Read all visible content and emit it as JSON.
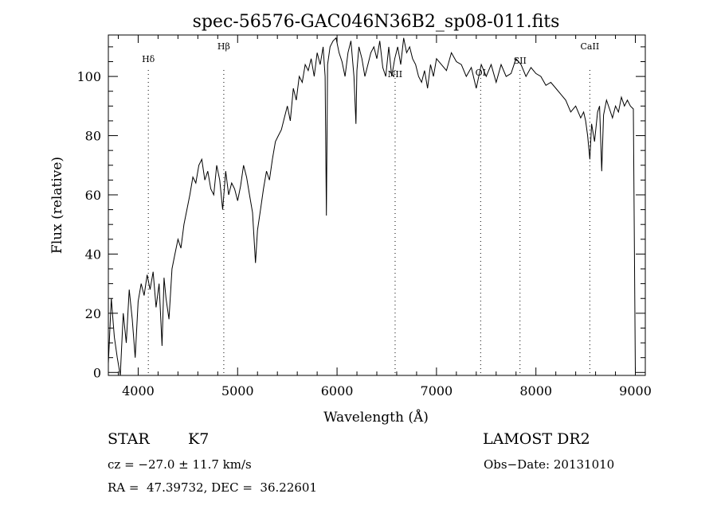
{
  "chart_data": {
    "type": "line",
    "title": "spec-56576-GAC046N36B2_sp08-011.fits",
    "xlabel": "Wavelength (Å)",
    "ylabel": "Flux (relative)",
    "xlim": [
      3700,
      9100
    ],
    "ylim": [
      -1,
      114
    ],
    "xticks": [
      4000,
      5000,
      6000,
      7000,
      8000,
      9000
    ],
    "yticks": [
      0,
      20,
      40,
      60,
      80,
      100
    ],
    "grid": false,
    "series": [
      {
        "x": [
          3700,
          3730,
          3760,
          3790,
          3820,
          3850,
          3880,
          3910,
          3940,
          3970,
          4000,
          4030,
          4060,
          4090,
          4120,
          4150,
          4180,
          4210,
          4240,
          4260,
          4280,
          4310,
          4340,
          4370,
          4400,
          4430,
          4460,
          4490,
          4520,
          4550,
          4580,
          4610,
          4640,
          4670,
          4700,
          4730,
          4760,
          4790,
          4820,
          4850,
          4880,
          4910,
          4940,
          4970,
          5000,
          5030,
          5060,
          5090,
          5120,
          5150,
          5180,
          5200,
          5230,
          5260,
          5290,
          5320,
          5350,
          5380,
          5410,
          5440,
          5470,
          5500,
          5530,
          5560,
          5590,
          5620,
          5650,
          5680,
          5710,
          5740,
          5770,
          5800,
          5830,
          5860,
          5880,
          5893,
          5905,
          5930,
          5960,
          5990,
          6020,
          6050,
          6080,
          6110,
          6140,
          6170,
          6190,
          6200,
          6220,
          6250,
          6280,
          6310,
          6340,
          6370,
          6400,
          6430,
          6460,
          6490,
          6520,
          6550,
          6580,
          6610,
          6640,
          6670,
          6700,
          6730,
          6760,
          6790,
          6820,
          6850,
          6880,
          6910,
          6940,
          6970,
          7000,
          7050,
          7100,
          7150,
          7200,
          7250,
          7300,
          7350,
          7400,
          7450,
          7500,
          7550,
          7600,
          7650,
          7700,
          7750,
          7800,
          7850,
          7900,
          7950,
          8000,
          8050,
          8100,
          8150,
          8200,
          8250,
          8300,
          8350,
          8400,
          8450,
          8480,
          8500,
          8520,
          8542,
          8560,
          8590,
          8620,
          8640,
          8662,
          8680,
          8710,
          8740,
          8770,
          8800,
          8830,
          8860,
          8890,
          8920,
          8950,
          8980,
          9000
        ],
        "values": [
          3,
          25,
          12,
          5,
          -1,
          20,
          10,
          28,
          18,
          5,
          24,
          30,
          26,
          33,
          28,
          34,
          22,
          30,
          9,
          32,
          25,
          18,
          35,
          40,
          45,
          42,
          50,
          55,
          60,
          66,
          64,
          70,
          72,
          65,
          68,
          62,
          60,
          70,
          65,
          55,
          68,
          60,
          64,
          62,
          58,
          63,
          70,
          66,
          60,
          54,
          37,
          48,
          55,
          62,
          68,
          65,
          72,
          78,
          80,
          82,
          86,
          90,
          85,
          96,
          92,
          100,
          98,
          104,
          102,
          106,
          100,
          108,
          104,
          110,
          100,
          53,
          104,
          110,
          112,
          113,
          108,
          105,
          100,
          108,
          112,
          100,
          84,
          102,
          110,
          106,
          100,
          104,
          108,
          110,
          106,
          112,
          103,
          100,
          110,
          100,
          106,
          110,
          104,
          113,
          108,
          110,
          106,
          104,
          100,
          98,
          102,
          96,
          104,
          100,
          106,
          104,
          102,
          108,
          105,
          104,
          100,
          103,
          96,
          104,
          100,
          104,
          98,
          104,
          100,
          101,
          106,
          104,
          100,
          103,
          101,
          100,
          97,
          98,
          96,
          94,
          92,
          88,
          90,
          86,
          88,
          85,
          80,
          72,
          84,
          78,
          88,
          90,
          68,
          87,
          92,
          89,
          86,
          90,
          88,
          93,
          90,
          92,
          90,
          89,
          0
        ]
      }
    ],
    "line_labels": [
      {
        "label": "Hδ",
        "x": 4102
      },
      {
        "label": "Hβ",
        "x": 4861
      },
      {
        "label": "NII",
        "x": 6584
      },
      {
        "label": "OI",
        "x": 7444
      },
      {
        "label": "SII",
        "x": 7840
      },
      {
        "label": "CaII",
        "x": 8542
      }
    ]
  },
  "info": {
    "class": "STAR",
    "subclass": "K7",
    "survey": "LAMOST DR2",
    "cz": "cz = −27.0 ± 11.7 km/s",
    "obs_date": "Obs−Date: 20131010",
    "coords": "RA =  47.39732, DEC =  36.22601"
  }
}
